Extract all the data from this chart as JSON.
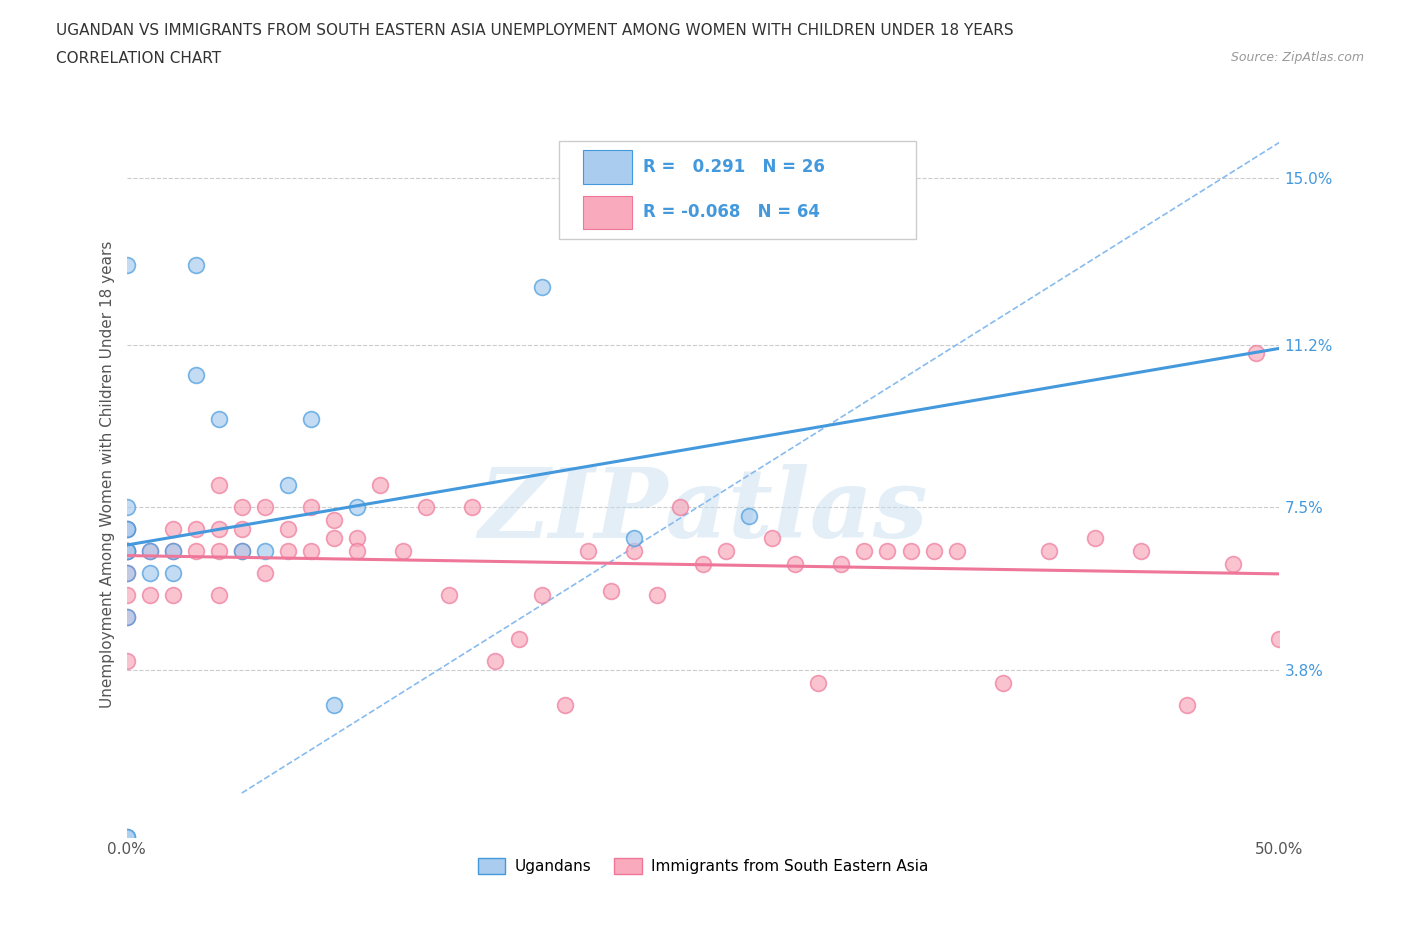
{
  "title_line1": "UGANDAN VS IMMIGRANTS FROM SOUTH EASTERN ASIA UNEMPLOYMENT AMONG WOMEN WITH CHILDREN UNDER 18 YEARS",
  "title_line2": "CORRELATION CHART",
  "source": "Source: ZipAtlas.com",
  "ylabel": "Unemployment Among Women with Children Under 18 years",
  "xlim": [
    0.0,
    0.5
  ],
  "ylim": [
    0.0,
    0.165
  ],
  "xtick_positions": [
    0.0,
    0.1,
    0.2,
    0.3,
    0.4,
    0.5
  ],
  "xtick_labels": [
    "0.0%",
    "",
    "",
    "",
    "",
    "50.0%"
  ],
  "ytick_positions": [
    0.038,
    0.075,
    0.112,
    0.15
  ],
  "ytick_labels": [
    "3.8%",
    "7.5%",
    "11.2%",
    "15.0%"
  ],
  "grid_color": "#cccccc",
  "background_color": "#ffffff",
  "ugandan_color": "#aaccee",
  "immigrant_color": "#f9aabc",
  "ugandan_line_color": "#4499dd",
  "immigrant_line_color": "#ee7799",
  "diag_line_color": "#88bbee",
  "R_ugandan": 0.291,
  "N_ugandan": 26,
  "R_immigrant": -0.068,
  "N_immigrant": 64,
  "ugandan_x": [
    0.0,
    0.0,
    0.0,
    0.0,
    0.0,
    0.0,
    0.0,
    0.0,
    0.0,
    0.0,
    0.01,
    0.01,
    0.02,
    0.02,
    0.03,
    0.03,
    0.04,
    0.05,
    0.06,
    0.07,
    0.08,
    0.09,
    0.1,
    0.18,
    0.22,
    0.27
  ],
  "ugandan_y": [
    0.0,
    0.0,
    0.05,
    0.06,
    0.065,
    0.065,
    0.07,
    0.07,
    0.075,
    0.13,
    0.06,
    0.065,
    0.06,
    0.065,
    0.13,
    0.105,
    0.095,
    0.065,
    0.065,
    0.08,
    0.095,
    0.03,
    0.075,
    0.125,
    0.068,
    0.073
  ],
  "immigrant_x": [
    0.0,
    0.0,
    0.0,
    0.0,
    0.0,
    0.0,
    0.0,
    0.01,
    0.01,
    0.02,
    0.02,
    0.02,
    0.03,
    0.03,
    0.04,
    0.04,
    0.04,
    0.04,
    0.05,
    0.05,
    0.05,
    0.06,
    0.06,
    0.07,
    0.07,
    0.08,
    0.08,
    0.09,
    0.09,
    0.1,
    0.1,
    0.11,
    0.12,
    0.13,
    0.14,
    0.15,
    0.16,
    0.17,
    0.18,
    0.19,
    0.2,
    0.21,
    0.22,
    0.23,
    0.24,
    0.25,
    0.26,
    0.28,
    0.29,
    0.3,
    0.31,
    0.32,
    0.34,
    0.36,
    0.38,
    0.4,
    0.42,
    0.44,
    0.46,
    0.48,
    0.49,
    0.5,
    0.33,
    0.35
  ],
  "immigrant_y": [
    0.06,
    0.065,
    0.065,
    0.07,
    0.055,
    0.05,
    0.04,
    0.065,
    0.055,
    0.055,
    0.065,
    0.07,
    0.065,
    0.07,
    0.055,
    0.065,
    0.07,
    0.08,
    0.065,
    0.07,
    0.075,
    0.06,
    0.075,
    0.065,
    0.07,
    0.065,
    0.075,
    0.068,
    0.072,
    0.068,
    0.065,
    0.08,
    0.065,
    0.075,
    0.055,
    0.075,
    0.04,
    0.045,
    0.055,
    0.03,
    0.065,
    0.056,
    0.065,
    0.055,
    0.075,
    0.062,
    0.065,
    0.068,
    0.062,
    0.035,
    0.062,
    0.065,
    0.065,
    0.065,
    0.035,
    0.065,
    0.068,
    0.065,
    0.03,
    0.062,
    0.11,
    0.045,
    0.065,
    0.065
  ],
  "watermark_text": "ZIPatlas",
  "watermark_color": "#c8dff0",
  "watermark_alpha": 0.5
}
